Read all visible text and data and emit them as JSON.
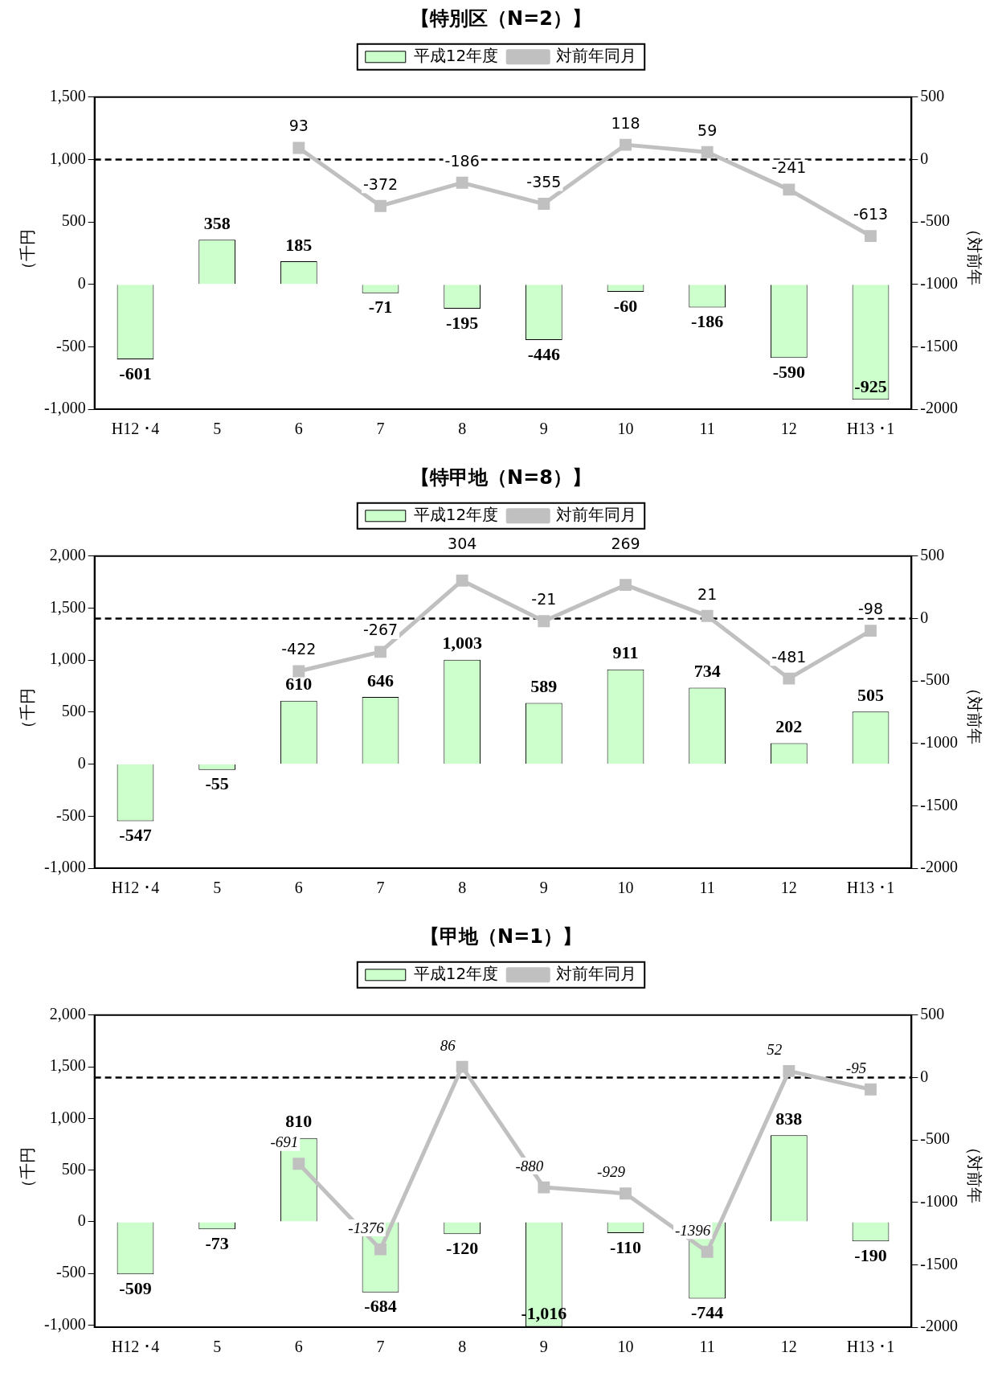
{
  "chart_data": [
    {
      "type": "bar",
      "title": "【特別区（N=2）】",
      "ylabel": "（千円",
      "y2label": "（対前年",
      "categories": [
        "H12 ･4",
        "5",
        "6",
        "7",
        "8",
        "9",
        "10",
        "11",
        "12",
        "H13 ･1"
      ],
      "series": [
        {
          "name": "平成12年度",
          "color": "#ccffcc",
          "values": [
            -601,
            358,
            185,
            -71,
            -195,
            -446,
            -60,
            -186,
            -590,
            -925
          ],
          "value_labels": [
            "-601",
            "358",
            "185",
            "-71",
            "-195",
            "-446",
            "-60",
            "-186",
            "-590",
            "-925"
          ]
        },
        {
          "name": "対前年同月",
          "type": "line",
          "axis": "y2",
          "color": "#c0c0c0",
          "values": [
            null,
            null,
            93,
            -372,
            -186,
            -355,
            118,
            59,
            -241,
            -613
          ],
          "value_labels": [
            null,
            null,
            "93",
            "-372",
            "-186",
            "-355",
            "118",
            "59",
            "-241",
            "-613"
          ]
        }
      ],
      "ylim": [
        -1000,
        1500
      ],
      "yticks": [
        {
          "value": -1000,
          "label": "-1,000"
        },
        -500,
        0,
        500,
        {
          "value": 1000,
          "label": "1,000"
        },
        {
          "value": 1500,
          "label": "1,500"
        }
      ],
      "y2lim": [
        -2000,
        500
      ],
      "y2ticks": [
        -2000,
        -1500,
        -1000,
        -500,
        0,
        500
      ],
      "ref_lines": [
        {
          "axis": "y2",
          "value": 0,
          "color": "#000000",
          "line_style": "dashed"
        }
      ],
      "legend": "top",
      "marker": "square"
    },
    {
      "type": "bar",
      "title": "【特甲地（N=8）】",
      "ylabel": "（千円",
      "y2label": "（対前年",
      "categories": [
        "H12 ･4",
        "5",
        "6",
        "7",
        "8",
        "9",
        "10",
        "11",
        "12",
        "H13 ･1"
      ],
      "series": [
        {
          "name": "平成12年度",
          "color": "#ccffcc",
          "values": [
            -547,
            -55,
            610,
            646,
            1003,
            589,
            911,
            734,
            202,
            505
          ],
          "value_labels": [
            "-547",
            "-55",
            "610",
            "646",
            "1,003",
            "589",
            "911",
            "734",
            "202",
            "505"
          ]
        },
        {
          "name": "対前年同月",
          "type": "line",
          "axis": "y2",
          "color": "#c0c0c0",
          "values": [
            null,
            null,
            -422,
            -267,
            304,
            -21,
            269,
            21,
            -481,
            -98
          ],
          "value_labels": [
            null,
            null,
            "-422",
            "-267",
            "304",
            "-21",
            "269",
            "21",
            "-481",
            "-98"
          ]
        }
      ],
      "ylim": [
        -1000,
        2000
      ],
      "yticks": [
        {
          "value": -1000,
          "label": "-1,000"
        },
        -500,
        0,
        500,
        {
          "value": 1000,
          "label": "1,000"
        },
        {
          "value": 1500,
          "label": "1,500"
        },
        {
          "value": 2000,
          "label": "2,000"
        }
      ],
      "y2lim": [
        -2000,
        500
      ],
      "y2ticks": [
        -2000,
        -1500,
        -1000,
        -500,
        0,
        500
      ],
      "ref_lines": [
        {
          "axis": "y2",
          "value": 0,
          "color": "#000000",
          "line_style": "dashed"
        }
      ],
      "legend": "top",
      "marker": "square"
    },
    {
      "type": "bar",
      "title": "【甲地（N=1）】",
      "ylabel": "（千円",
      "y2label": "（対前年",
      "categories": [
        "H12 ･4",
        "5",
        "6",
        "7",
        "8",
        "9",
        "10",
        "11",
        "12",
        "H13 ･1"
      ],
      "series": [
        {
          "name": "平成12年度",
          "color": "#ccffcc",
          "values": [
            -509,
            -73,
            810,
            -684,
            -120,
            -1016,
            -110,
            -744,
            838,
            -190
          ],
          "value_labels": [
            "-509",
            "-73",
            "810",
            "-684",
            "-120",
            "-1,016",
            "-110",
            "-744",
            "838",
            "-190"
          ]
        },
        {
          "name": "対前年同月",
          "type": "line",
          "axis": "y2",
          "color": "#c0c0c0",
          "values": [
            null,
            null,
            -691,
            -1376,
            86,
            -880,
            -929,
            -1396,
            52,
            -95
          ],
          "value_labels": [
            null,
            null,
            "-691",
            "-1376",
            "86",
            "-880",
            "-929",
            "-1396",
            "52",
            "-95"
          ]
        }
      ],
      "ylim": [
        -1020,
        2000
      ],
      "yticks": [
        {
          "value": -1000,
          "label": "-1,000"
        },
        -500,
        0,
        500,
        {
          "value": 1000,
          "label": "1,000"
        },
        {
          "value": 1500,
          "label": "1,500"
        },
        {
          "value": 2000,
          "label": "2,000"
        }
      ],
      "y2lim": [
        -2000,
        500
      ],
      "y2ticks": [
        -2000,
        -1500,
        -1000,
        -500,
        0,
        500
      ],
      "ref_lines": [
        {
          "axis": "y2",
          "value": 0,
          "color": "#000000",
          "line_style": "dashed"
        }
      ],
      "legend": "top",
      "marker": "square"
    }
  ]
}
